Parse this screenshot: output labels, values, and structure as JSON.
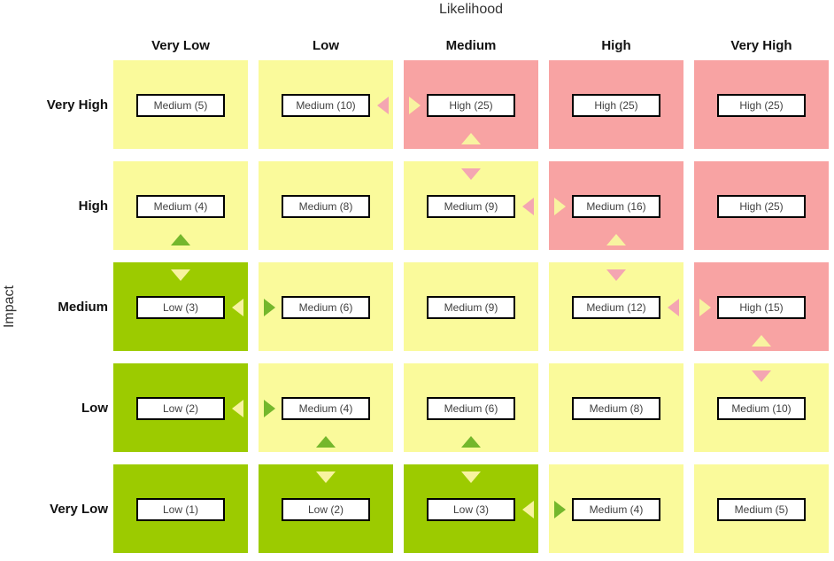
{
  "cell_colors": {
    "yellow": "#FAFA9B",
    "pink": "#F8A3A3",
    "green": "#9CCB00"
  },
  "arrow_colors": {
    "yellow": "#F8F3A0",
    "pink": "#F4A6B2",
    "green": "#74B72C"
  },
  "chart_data": {
    "type": "heatmap",
    "x_axis_title": "Likelihood",
    "y_axis_title": "Impact",
    "x_categories": [
      "Very Low",
      "Low",
      "Medium",
      "High",
      "Very High"
    ],
    "y_categories": [
      "Very High",
      "High",
      "Medium",
      "Low",
      "Very Low"
    ],
    "cells": [
      {
        "impact": "Very High",
        "likelihood": "Very Low",
        "label": "Medium (5)",
        "rating": "Medium",
        "score": 5,
        "color": "yellow",
        "arrows": []
      },
      {
        "impact": "Very High",
        "likelihood": "Low",
        "label": "Medium (10)",
        "rating": "Medium",
        "score": 10,
        "color": "yellow",
        "arrows": [
          {
            "dir": "left",
            "color": "pink"
          }
        ]
      },
      {
        "impact": "Very High",
        "likelihood": "Medium",
        "label": "High (25)",
        "rating": "High",
        "score": 25,
        "color": "pink",
        "arrows": [
          {
            "dir": "right",
            "color": "yellow"
          },
          {
            "dir": "up",
            "color": "yellow"
          }
        ]
      },
      {
        "impact": "Very High",
        "likelihood": "High",
        "label": "High (25)",
        "rating": "High",
        "score": 25,
        "color": "pink",
        "arrows": []
      },
      {
        "impact": "Very High",
        "likelihood": "Very High",
        "label": "High (25)",
        "rating": "High",
        "score": 25,
        "color": "pink",
        "arrows": []
      },
      {
        "impact": "High",
        "likelihood": "Very Low",
        "label": "Medium (4)",
        "rating": "Medium",
        "score": 4,
        "color": "yellow",
        "arrows": [
          {
            "dir": "up",
            "color": "green"
          }
        ]
      },
      {
        "impact": "High",
        "likelihood": "Low",
        "label": "Medium (8)",
        "rating": "Medium",
        "score": 8,
        "color": "yellow",
        "arrows": []
      },
      {
        "impact": "High",
        "likelihood": "Medium",
        "label": "Medium (9)",
        "rating": "Medium",
        "score": 9,
        "color": "yellow",
        "arrows": [
          {
            "dir": "down",
            "color": "pink"
          },
          {
            "dir": "left",
            "color": "pink"
          }
        ]
      },
      {
        "impact": "High",
        "likelihood": "High",
        "label": "Medium (16)",
        "rating": "Medium",
        "score": 16,
        "color": "pink",
        "arrows": [
          {
            "dir": "right",
            "color": "yellow"
          },
          {
            "dir": "up",
            "color": "yellow"
          }
        ]
      },
      {
        "impact": "High",
        "likelihood": "Very High",
        "label": "High (25)",
        "rating": "High",
        "score": 25,
        "color": "pink",
        "arrows": []
      },
      {
        "impact": "Medium",
        "likelihood": "Very Low",
        "label": "Low (3)",
        "rating": "Low",
        "score": 3,
        "color": "green",
        "arrows": [
          {
            "dir": "down",
            "color": "yellow"
          },
          {
            "dir": "left",
            "color": "yellow"
          }
        ]
      },
      {
        "impact": "Medium",
        "likelihood": "Low",
        "label": "Medium (6)",
        "rating": "Medium",
        "score": 6,
        "color": "yellow",
        "arrows": [
          {
            "dir": "right",
            "color": "green"
          }
        ]
      },
      {
        "impact": "Medium",
        "likelihood": "Medium",
        "label": "Medium (9)",
        "rating": "Medium",
        "score": 9,
        "color": "yellow",
        "arrows": []
      },
      {
        "impact": "Medium",
        "likelihood": "High",
        "label": "Medium (12)",
        "rating": "Medium",
        "score": 12,
        "color": "yellow",
        "arrows": [
          {
            "dir": "down",
            "color": "pink"
          },
          {
            "dir": "left",
            "color": "pink"
          }
        ]
      },
      {
        "impact": "Medium",
        "likelihood": "Very High",
        "label": "High (15)",
        "rating": "High",
        "score": 15,
        "color": "pink",
        "arrows": [
          {
            "dir": "right",
            "color": "yellow"
          },
          {
            "dir": "up",
            "color": "yellow"
          }
        ]
      },
      {
        "impact": "Low",
        "likelihood": "Very Low",
        "label": "Low (2)",
        "rating": "Low",
        "score": 2,
        "color": "green",
        "arrows": [
          {
            "dir": "left",
            "color": "yellow"
          }
        ]
      },
      {
        "impact": "Low",
        "likelihood": "Low",
        "label": "Medium (4)",
        "rating": "Medium",
        "score": 4,
        "color": "yellow",
        "arrows": [
          {
            "dir": "right",
            "color": "green"
          },
          {
            "dir": "up",
            "color": "green"
          }
        ]
      },
      {
        "impact": "Low",
        "likelihood": "Medium",
        "label": "Medium (6)",
        "rating": "Medium",
        "score": 6,
        "color": "yellow",
        "arrows": [
          {
            "dir": "up",
            "color": "green"
          }
        ]
      },
      {
        "impact": "Low",
        "likelihood": "High",
        "label": "Medium (8)",
        "rating": "Medium",
        "score": 8,
        "color": "yellow",
        "arrows": []
      },
      {
        "impact": "Low",
        "likelihood": "Very High",
        "label": "Medium (10)",
        "rating": "Medium",
        "score": 10,
        "color": "yellow",
        "arrows": [
          {
            "dir": "down",
            "color": "pink"
          }
        ]
      },
      {
        "impact": "Very Low",
        "likelihood": "Very Low",
        "label": "Low (1)",
        "rating": "Low",
        "score": 1,
        "color": "green",
        "arrows": []
      },
      {
        "impact": "Very Low",
        "likelihood": "Low",
        "label": "Low (2)",
        "rating": "Low",
        "score": 2,
        "color": "green",
        "arrows": [
          {
            "dir": "down",
            "color": "yellow"
          }
        ]
      },
      {
        "impact": "Very Low",
        "likelihood": "Medium",
        "label": "Low (3)",
        "rating": "Low",
        "score": 3,
        "color": "green",
        "arrows": [
          {
            "dir": "down",
            "color": "yellow"
          },
          {
            "dir": "left",
            "color": "yellow"
          }
        ]
      },
      {
        "impact": "Very Low",
        "likelihood": "High",
        "label": "Medium (4)",
        "rating": "Medium",
        "score": 4,
        "color": "yellow",
        "arrows": [
          {
            "dir": "right",
            "color": "green"
          }
        ]
      },
      {
        "impact": "Very Low",
        "likelihood": "Very High",
        "label": "Medium (5)",
        "rating": "Medium",
        "score": 5,
        "color": "yellow",
        "arrows": []
      }
    ]
  }
}
